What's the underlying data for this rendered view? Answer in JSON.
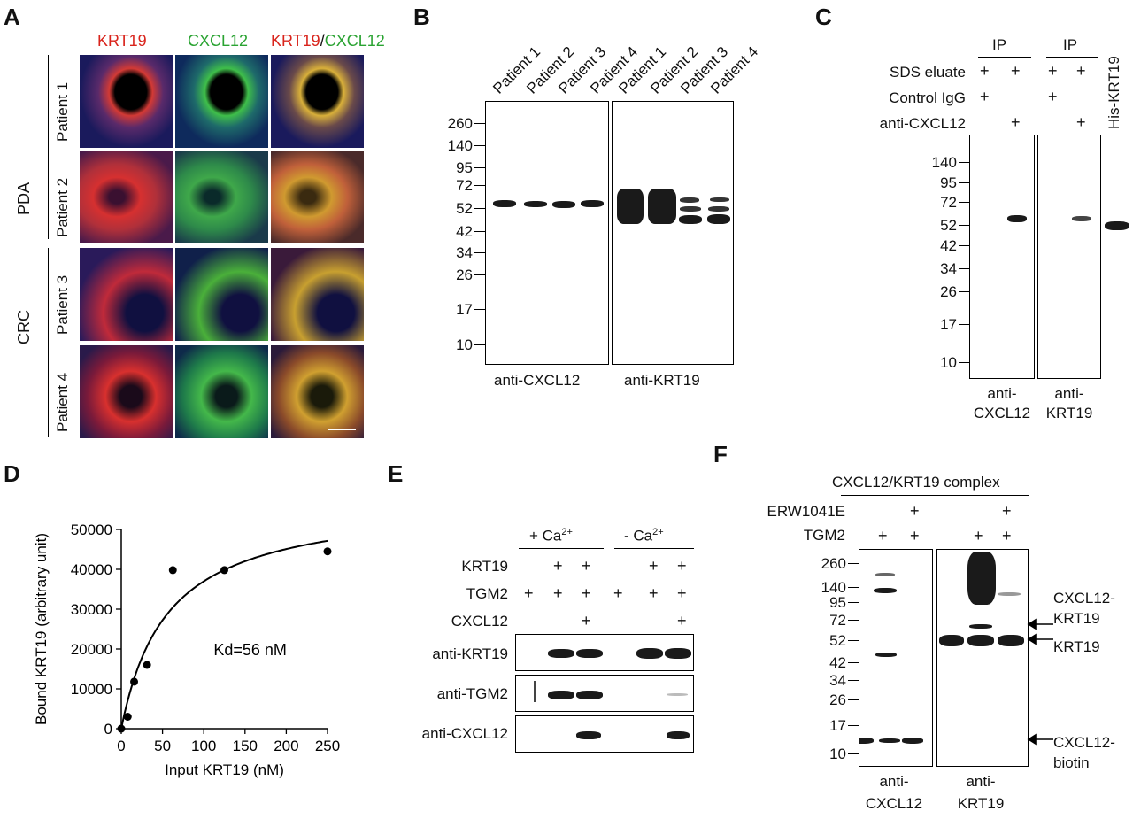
{
  "panels": {
    "A": "A",
    "B": "B",
    "C": "C",
    "D": "D",
    "E": "E",
    "F": "F"
  },
  "panelA": {
    "col_krt19": "KRT19",
    "col_cxcl12": "CXCL12",
    "col_merge_krt": "KRT19",
    "col_merge_slash": "/",
    "col_merge_cx": "CXCL12",
    "group_pda": "PDA",
    "group_crc": "CRC",
    "patients": [
      "Patient 1",
      "Patient 2",
      "Patient 3",
      "Patient 4"
    ]
  },
  "panelB": {
    "lanes": [
      "Patient 1",
      "Patient 2",
      "Patient 3",
      "Patient 4",
      "Patient 1",
      "Patient 2",
      "Patient 3",
      "Patient 4"
    ],
    "markers": [
      "260",
      "140",
      "95",
      "72",
      "52",
      "42",
      "34",
      "26",
      "17",
      "10"
    ],
    "blot1": "anti-CXCL12",
    "blot2": "anti-KRT19"
  },
  "panelC": {
    "ip1": "IP",
    "ip2": "IP",
    "his": "His-KRT19",
    "row_sds": "SDS eluate",
    "row_igg": "Control IgG",
    "row_anti": "anti-CXCL12",
    "plus": "+",
    "markers": [
      "140",
      "95",
      "72",
      "52",
      "42",
      "34",
      "26",
      "17",
      "10"
    ],
    "blot1_l1": "anti-",
    "blot1_l2": "CXCL12",
    "blot2_l1": "anti-",
    "blot2_l2": "KRT19"
  },
  "panelD": {
    "ylabel": "Bound KRT19 (arbitrary unit)",
    "xlabel": "Input KRT19 (nM)",
    "annotation": "Kd=56 nM",
    "yticks": [
      "50000",
      "40000",
      "30000",
      "20000",
      "10000",
      "0"
    ],
    "xticks": [
      "0",
      "50",
      "100",
      "150",
      "200",
      "250"
    ]
  },
  "chart_data": {
    "type": "scatter",
    "xlabel": "Input KRT19 (nM)",
    "ylabel": "Bound KRT19 (arbitrary unit)",
    "xlim": [
      0,
      250
    ],
    "ylim": [
      0,
      50000
    ],
    "x": [
      0,
      7.8,
      15.6,
      31.25,
      62.5,
      125,
      250
    ],
    "y": [
      0,
      3000,
      11800,
      16000,
      39800,
      39800,
      44500
    ],
    "fit": {
      "model": "one-site binding",
      "Kd": 56,
      "Bmax": 57700
    },
    "annotation": "Kd=56 nM"
  },
  "panelE": {
    "ca_plus": "+ Ca",
    "ca_minus": "- Ca",
    "ca_sup": "2+",
    "row_krt19": "KRT19",
    "row_tgm2": "TGM2",
    "row_cxcl12": "CXCL12",
    "plus": "+",
    "blot1": "anti-KRT19",
    "blot2": "anti-TGM2",
    "blot3": "anti-CXCL12"
  },
  "panelF": {
    "complex": "CXCL12/KRT19 complex",
    "row_erw": "ERW1041E",
    "row_tgm2": "TGM2",
    "plus": "+",
    "markers": [
      "260",
      "140",
      "95",
      "72",
      "52",
      "42",
      "34",
      "26",
      "17",
      "10"
    ],
    "arrow_cx_krt_1": "CXCL12-",
    "arrow_cx_krt_2": "KRT19",
    "arrow_krt": "KRT19",
    "arrow_cxb_1": "CXCL12-",
    "arrow_cxb_2": "biotin",
    "blot1_l1": "anti-",
    "blot1_l2": "CXCL12",
    "blot2_l1": "anti-",
    "blot2_l2": "KRT19"
  }
}
